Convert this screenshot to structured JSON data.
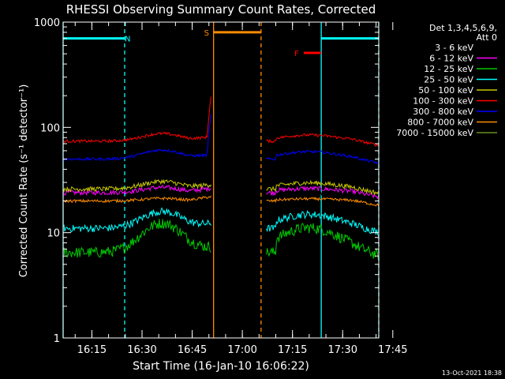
{
  "chart_data": {
    "type": "line",
    "title": "RHESSI Observing Summary Count Rates, Corrected",
    "xlabel": "Start Time (16-Jan-10 16:06:22)",
    "ylabel": "Corrected Count Rate (s⁻¹ detector⁻¹)",
    "yscale": "log",
    "ylim": [
      1,
      1000
    ],
    "xlim_minutes": [
      6.4,
      100.8
    ],
    "x_tick_labels": [
      "16:15",
      "16:30",
      "16:45",
      "17:00",
      "17:15",
      "17:30",
      "17:45"
    ],
    "y_tick_labels": [
      "1",
      "10",
      "100",
      "1000"
    ],
    "legend_header": [
      "Det 1,3,4,5,6,9,",
      "Att 0"
    ],
    "legend_placement": "right",
    "timestamp": "13-Oct-2021 18:38",
    "series": [
      {
        "name": "3 - 6 keV",
        "color": "#000000",
        "base": 21,
        "bump": 0.12,
        "noise": 0.07
      },
      {
        "name": "6 - 12 keV",
        "color": "#ff00ff",
        "base": 24,
        "bump": 0.12,
        "noise": 0.05
      },
      {
        "name": "12 - 25 keV",
        "color": "#00c800",
        "base": 6.5,
        "bump": 0.9,
        "noise": 0.12
      },
      {
        "name": "25 - 50 keV",
        "color": "#00ffff",
        "base": 11,
        "bump": 0.45,
        "noise": 0.08
      },
      {
        "name": "50 - 100 keV",
        "color": "#c8c800",
        "base": 26,
        "bump": 0.18,
        "noise": 0.05
      },
      {
        "name": "100 - 300 keV",
        "color": "#ff0000",
        "base": 74,
        "bump": 0.18,
        "noise": 0.03
      },
      {
        "name": "300 - 800 keV",
        "color": "#0000ff",
        "base": 50,
        "bump": 0.22,
        "noise": 0.03
      },
      {
        "name": "800 - 7000 keV",
        "color": "#ff8c00",
        "base": 20,
        "bump": 0.06,
        "noise": 0.03
      },
      {
        "name": "7000 - 15000 keV",
        "color": "#6b8e23",
        "base": 0,
        "bump": 0,
        "noise": 0
      }
    ],
    "segments_minutes": [
      [
        6.4,
        50.8
      ],
      [
        67.2,
        100.8
      ]
    ],
    "bars": [
      {
        "label": "N",
        "color": "#00ffff",
        "start": 6.4,
        "end": 24.8,
        "level": 700
      },
      {
        "label": "",
        "color": "#00ffff",
        "start": 83.6,
        "end": 100.8,
        "level": 700
      },
      {
        "label": "S",
        "color": "#ff8c00",
        "start": 51.4,
        "end": 65.6,
        "level": 800
      },
      {
        "label": "F",
        "color": "#ff0000",
        "start": 78.4,
        "end": 83.6,
        "level": 510
      }
    ],
    "vlines": [
      {
        "t": 6.4,
        "color": "#00ffff",
        "style": "solid"
      },
      {
        "t": 24.8,
        "color": "#00ffff",
        "style": "dashed"
      },
      {
        "t": 51.4,
        "color": "#ff8c00",
        "style": "solid"
      },
      {
        "t": 65.6,
        "color": "#ff8c00",
        "style": "dashed"
      },
      {
        "t": 83.6,
        "color": "#00ffff",
        "style": "solid"
      },
      {
        "t": 100.8,
        "color": "#00ffff",
        "style": "dashed"
      }
    ]
  }
}
